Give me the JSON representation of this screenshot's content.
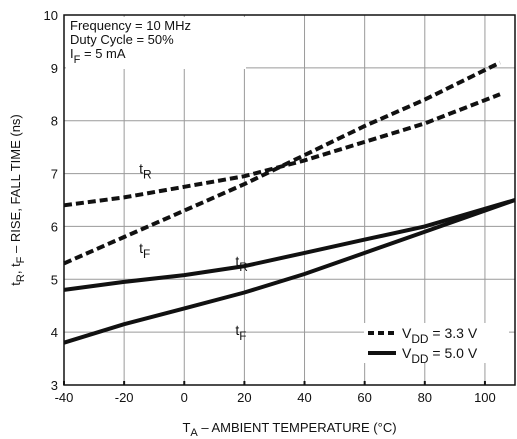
{
  "chart_data": {
    "type": "line",
    "xlabel": "TA – AMBIENT TEMPERATURE (°C)",
    "ylabel": "tR, tF – RISE, FALL TIME (ns)",
    "xlim": [
      -40,
      110
    ],
    "ylim": [
      3,
      10
    ],
    "x_ticks": [
      -40,
      -20,
      0,
      20,
      40,
      60,
      80,
      100
    ],
    "y_ticks": [
      3,
      4,
      5,
      6,
      7,
      8,
      9,
      10
    ],
    "grid": true,
    "legend_position": "bottom-right",
    "conditions": [
      "Frequency = 10 MHz",
      "Duty Cycle = 50%",
      "IF = 5 mA"
    ],
    "legend": [
      {
        "label": "VDD = 3.3 V",
        "style": "dashed"
      },
      {
        "label": "VDD = 5.0 V",
        "style": "solid"
      }
    ],
    "series": [
      {
        "label": "tR",
        "vdd": "3.3 V",
        "style": "dashed",
        "x": [
          -40,
          -20,
          0,
          20,
          40,
          60,
          80,
          105
        ],
        "y": [
          6.4,
          6.55,
          6.75,
          6.95,
          7.25,
          7.6,
          7.95,
          8.5
        ]
      },
      {
        "label": "tF",
        "vdd": "3.3 V",
        "style": "dashed",
        "x": [
          -40,
          -20,
          0,
          20,
          40,
          60,
          80,
          105
        ],
        "y": [
          5.3,
          5.8,
          6.3,
          6.8,
          7.35,
          7.9,
          8.4,
          9.1
        ]
      },
      {
        "label": "tR",
        "vdd": "5.0 V",
        "style": "solid",
        "x": [
          -40,
          -20,
          0,
          20,
          40,
          60,
          80,
          110
        ],
        "y": [
          4.8,
          4.95,
          5.08,
          5.25,
          5.5,
          5.75,
          6.0,
          6.5
        ]
      },
      {
        "label": "tF",
        "vdd": "5.0 V",
        "style": "solid",
        "x": [
          -40,
          -20,
          0,
          20,
          40,
          60,
          80,
          110
        ],
        "y": [
          3.8,
          4.15,
          4.45,
          4.75,
          5.1,
          5.5,
          5.9,
          6.5
        ]
      }
    ],
    "curve_labels": [
      {
        "text": "tR",
        "x": -15,
        "y": 7.0
      },
      {
        "text": "tF",
        "x": -15,
        "y": 5.5
      },
      {
        "text": "tR",
        "x": 17,
        "y": 5.25
      },
      {
        "text": "tF",
        "x": 17,
        "y": 3.95
      }
    ]
  }
}
